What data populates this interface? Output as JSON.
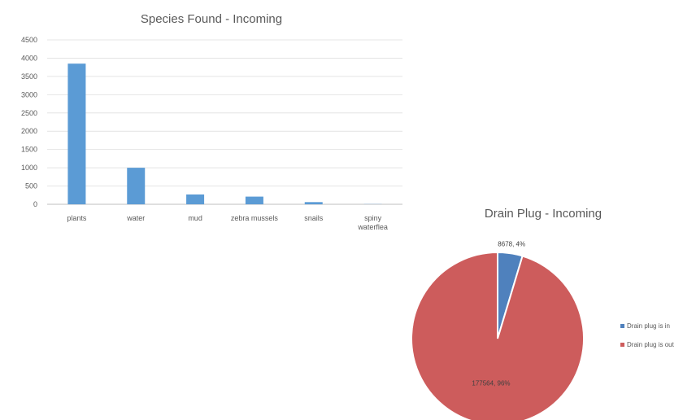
{
  "chart_data": [
    {
      "type": "bar",
      "title": "Species Found - Incoming",
      "categories": [
        "plants",
        "water",
        "mud",
        "zebra mussels",
        "snails",
        "spiny waterflea"
      ],
      "category_lines": [
        [
          "plants"
        ],
        [
          "water"
        ],
        [
          "mud"
        ],
        [
          "zebra mussels"
        ],
        [
          "snails"
        ],
        [
          "spiny",
          "waterflea"
        ]
      ],
      "values": [
        3850,
        1000,
        270,
        210,
        60,
        5
      ],
      "xlabel": "",
      "ylabel": "",
      "ylim": [
        0,
        4500
      ],
      "yticks": [
        "0",
        "500",
        "1000",
        "1500",
        "2000",
        "2500",
        "3000",
        "3500",
        "4000",
        "4500"
      ],
      "grid": true,
      "bar_color": "#5b9bd5"
    },
    {
      "type": "pie",
      "title": "Drain Plug - Incoming",
      "slices": [
        {
          "label": "Drain plug is in",
          "value": 8678,
          "data_label": "8678, 4%",
          "color": "#4f81bd"
        },
        {
          "label": "Drain plug is out",
          "value": 177564,
          "data_label": "177564, 96%",
          "color": "#cd5c5c"
        }
      ],
      "legend": "right"
    }
  ]
}
